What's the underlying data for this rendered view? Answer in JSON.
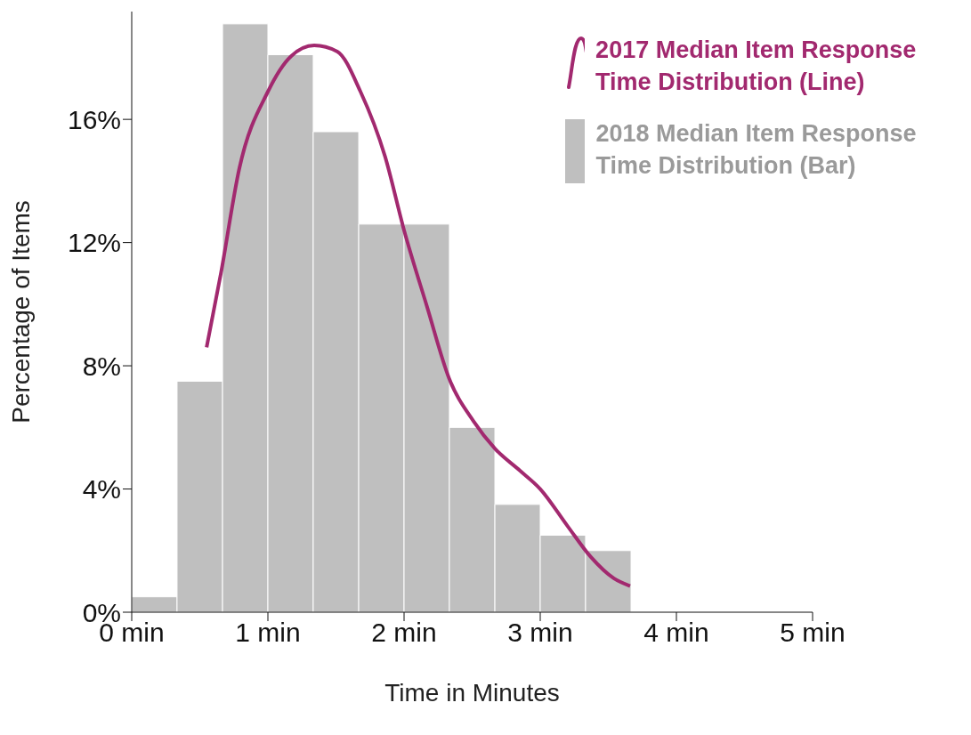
{
  "chart_data": {
    "type": "histogram",
    "xlabel": "Time in Minutes",
    "ylabel": "Percentage of Items",
    "bins": [
      0,
      0.333,
      0.667,
      1,
      1.333,
      1.667,
      2,
      2.333,
      2.667,
      3,
      3.333,
      3.667
    ],
    "series": [
      {
        "name": "2017 Median Item Response Time Distribution (Line)",
        "type": "line",
        "color": "#a2296f",
        "x": [
          0.55,
          0.655,
          0.79,
          1.0,
          1.17,
          1.34,
          1.51,
          1.68,
          1.86,
          2.0,
          2.17,
          2.33,
          2.51,
          2.67,
          2.85,
          3.0,
          3.2,
          3.37,
          3.54,
          3.66
        ],
        "values": [
          8.6,
          11.0,
          14.4,
          16.9,
          18.05,
          18.4,
          18.2,
          16.9,
          14.8,
          12.4,
          9.9,
          7.6,
          6.2,
          5.3,
          4.6,
          4.0,
          2.8,
          1.8,
          1.1,
          0.85
        ]
      },
      {
        "name": "2018 Median Item Response Time Distribution (Bar)",
        "color": "#bfbfbf",
        "values": [
          0.5,
          7.5,
          19.1,
          18.1,
          15.6,
          12.6,
          12.6,
          6.0,
          3.5,
          2.5,
          2.0
        ]
      }
    ],
    "xlim": [
      0,
      5
    ],
    "xticks": [
      {
        "value": 0,
        "label": "0 min"
      },
      {
        "value": 1,
        "label": "1 min"
      },
      {
        "value": 2,
        "label": "2 min"
      },
      {
        "value": 3,
        "label": "3 min"
      },
      {
        "value": 4,
        "label": "4 min"
      },
      {
        "value": 5,
        "label": "5 min"
      }
    ],
    "ylim": [
      0,
      19.5
    ],
    "yticks": [
      {
        "value": 0,
        "label": "0%"
      },
      {
        "value": 4,
        "label": "4%"
      },
      {
        "value": 8,
        "label": "8%"
      },
      {
        "value": 12,
        "label": "12%"
      },
      {
        "value": 16,
        "label": "16%"
      }
    ],
    "legend": "top right"
  }
}
